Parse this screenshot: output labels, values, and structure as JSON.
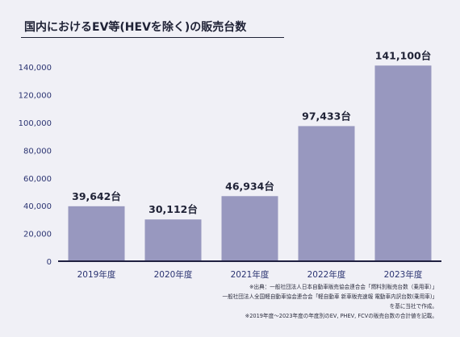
{
  "title": "国内におけるEV等(HEVを除く)の販売台数",
  "chart_data": {
    "type": "bar",
    "title": "国内におけるEV等(HEVを除く)の販売台数",
    "categories": [
      "2019年度",
      "2020年度",
      "2021年度",
      "2022年度",
      "2023年度"
    ],
    "values": [
      39642,
      30112,
      46934,
      97433,
      141100
    ],
    "data_labels": [
      "39,642台",
      "30,112台",
      "46,934台",
      "97,433台",
      "141,100台"
    ],
    "yticks": [
      0,
      20000,
      40000,
      60000,
      80000,
      100000,
      120000,
      140000
    ],
    "ytick_labels": [
      "0",
      "20,000",
      "40,000",
      "60,000",
      "80,000",
      "100,000",
      "120,000",
      "140,000"
    ],
    "ylim": [
      0,
      150000
    ],
    "grid": false,
    "colors": {
      "bar": "#9898bf",
      "axis": "#1f2040",
      "tick_text": "#2b3472"
    }
  },
  "notes": [
    "※出典：一般社団法人日本自動車販売協会連合会「燃料別販売台数（乗用車）」",
    "一般社団法人全国軽自動車協会連合会「軽自動車 新車販売速報 電動車内訳台数(乗用車)」",
    "を基に当社で作成。",
    "※2019年度〜2023年度の年度別のEV, PHEV, FCVの販売台数の合計値を記載。"
  ]
}
